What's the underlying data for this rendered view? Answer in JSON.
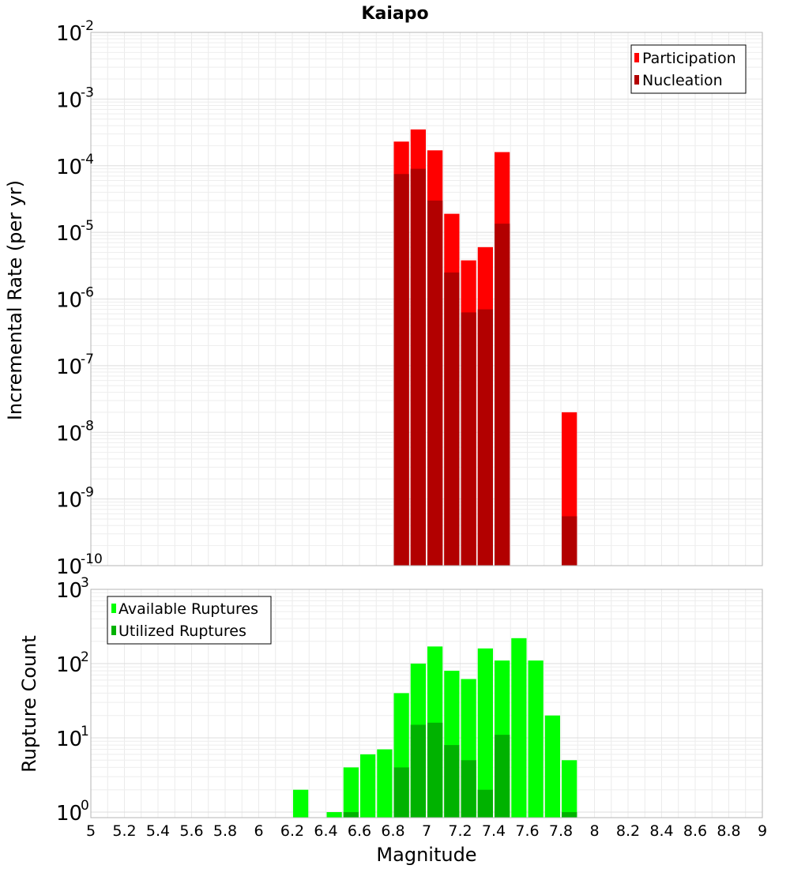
{
  "chart_data": [
    {
      "type": "bar",
      "title": "Kaiapo",
      "xlabel": "",
      "ylabel": "Incremental Rate (per yr)",
      "xlim": [
        5,
        9
      ],
      "ylim": [
        1e-10,
        0.01
      ],
      "yscale": "log",
      "bin_width": 0.1,
      "grid": true,
      "legend_position": "top-right",
      "y_tick_exponents": [
        "-10",
        "-9",
        "-8",
        "-7",
        "-6",
        "-5",
        "-4",
        "-3",
        "-2"
      ],
      "series": [
        {
          "name": "Participation",
          "color": "#ff0000",
          "x": [
            6.85,
            6.95,
            7.05,
            7.15,
            7.25,
            7.35,
            7.45,
            7.85
          ],
          "values": [
            0.00023,
            0.00035,
            0.00017,
            1.9e-05,
            3.8e-06,
            6e-06,
            0.00016,
            2e-08
          ]
        },
        {
          "name": "Nucleation",
          "color": "#b20000",
          "x": [
            6.85,
            6.95,
            7.05,
            7.15,
            7.25,
            7.35,
            7.45,
            7.85
          ],
          "values": [
            7.5e-05,
            9e-05,
            3e-05,
            2.5e-06,
            6.3e-07,
            7e-07,
            1.35e-05,
            5.5e-10
          ]
        }
      ]
    },
    {
      "type": "bar",
      "title": "",
      "xlabel": "Magnitude",
      "ylabel": "Rupture Count",
      "xlim": [
        5,
        9
      ],
      "ylim": [
        0.8,
        1000
      ],
      "yscale": "log",
      "bin_width": 0.1,
      "grid": true,
      "legend_position": "top-left",
      "x_ticks": [
        "5",
        "5.2",
        "5.4",
        "5.6",
        "5.8",
        "6",
        "6.2",
        "6.4",
        "6.6",
        "6.8",
        "7",
        "7.2",
        "7.4",
        "7.6",
        "7.8",
        "8",
        "8.2",
        "8.4",
        "8.6",
        "8.8",
        "9"
      ],
      "y_tick_exponents": [
        "0",
        "1",
        "2",
        "3"
      ],
      "series": [
        {
          "name": "Available Ruptures",
          "color": "#00ff00",
          "x": [
            6.25,
            6.45,
            6.55,
            6.65,
            6.75,
            6.85,
            6.95,
            7.05,
            7.15,
            7.25,
            7.35,
            7.45,
            7.55,
            7.65,
            7.75,
            7.85
          ],
          "values": [
            2,
            1,
            4,
            6,
            7,
            40,
            100,
            170,
            80,
            62,
            160,
            110,
            220,
            110,
            20,
            5
          ]
        },
        {
          "name": "Utilized Ruptures",
          "color": "#00b200",
          "x": [
            6.55,
            6.85,
            6.95,
            7.05,
            7.15,
            7.25,
            7.35,
            7.45,
            7.85
          ],
          "values": [
            1,
            4,
            15,
            16,
            8,
            5,
            2,
            11,
            1
          ]
        }
      ]
    }
  ]
}
